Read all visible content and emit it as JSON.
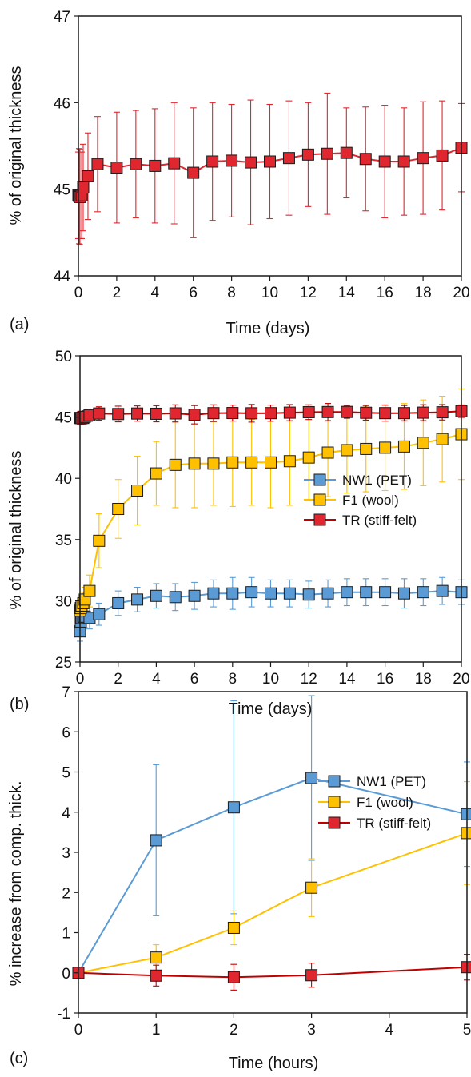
{
  "chart_data": [
    {
      "panel_label": "(a)",
      "type": "line",
      "xlabel": "Time (days)",
      "ylabel": "% of original thickness",
      "xlim": [
        0,
        20
      ],
      "ylim": [
        44,
        47
      ],
      "x_ticks": [
        0,
        2,
        4,
        6,
        8,
        10,
        12,
        14,
        16,
        18,
        20
      ],
      "y_ticks": [
        44,
        45,
        46,
        47
      ],
      "legend": "none",
      "grid": false,
      "series": [
        {
          "color": "#e0262e",
          "x": [
            0,
            0.04,
            0.08,
            0.17,
            0.25,
            0.5,
            1,
            2,
            3,
            4,
            5,
            6,
            7,
            8,
            9,
            10,
            11,
            12,
            13,
            14,
            15,
            16,
            17,
            18,
            19,
            20
          ],
          "y": [
            44.93,
            44.92,
            44.91,
            44.93,
            45.02,
            45.15,
            45.29,
            45.25,
            45.29,
            45.27,
            45.3,
            45.19,
            45.32,
            45.33,
            45.31,
            45.32,
            45.36,
            45.4,
            45.41,
            45.42,
            45.35,
            45.32,
            45.32,
            45.36,
            45.39,
            45.48
          ],
          "err": [
            0.5,
            0.55,
            0.55,
            0.5,
            0.5,
            0.5,
            0.55,
            0.64,
            0.62,
            0.66,
            0.7,
            0.75,
            0.68,
            0.65,
            0.72,
            0.66,
            0.66,
            0.6,
            0.7,
            0.52,
            0.6,
            0.65,
            0.62,
            0.65,
            0.63,
            0.51
          ]
        }
      ]
    },
    {
      "panel_label": "(b)",
      "type": "line",
      "xlabel": "Time (days)",
      "ylabel": "% of original thickness",
      "xlim": [
        0,
        20
      ],
      "ylim": [
        25,
        50
      ],
      "x_ticks": [
        0,
        2,
        4,
        6,
        8,
        10,
        12,
        14,
        16,
        18,
        20
      ],
      "y_ticks": [
        25,
        30,
        35,
        40,
        45,
        50
      ],
      "legend": "right",
      "grid": false,
      "series": [
        {
          "name": "NW1 (PET)",
          "color": "#5b9bd5",
          "x": [
            0,
            0.04,
            0.08,
            0.17,
            0.25,
            0.5,
            1,
            2,
            3,
            4,
            5,
            6,
            7,
            8,
            9,
            10,
            11,
            12,
            13,
            14,
            15,
            16,
            17,
            18,
            19,
            20
          ],
          "y": [
            27.5,
            28.3,
            28.6,
            28.7,
            28.7,
            28.6,
            28.9,
            29.8,
            30.1,
            30.4,
            30.3,
            30.4,
            30.6,
            30.6,
            30.7,
            30.6,
            30.6,
            30.5,
            30.6,
            30.7,
            30.7,
            30.7,
            30.6,
            30.7,
            30.8,
            30.7
          ],
          "err": [
            0.8,
            0.9,
            0.9,
            0.9,
            0.9,
            0.9,
            0.9,
            1.0,
            1.0,
            1.0,
            1.1,
            1.1,
            1.1,
            1.3,
            1.2,
            1.1,
            1.1,
            1.1,
            1.1,
            1.1,
            1.1,
            1.1,
            1.2,
            1.1,
            1.1,
            1.0
          ]
        },
        {
          "name": "F1 (wool)",
          "color": "#ffc000",
          "x": [
            0,
            0.04,
            0.08,
            0.17,
            0.25,
            0.5,
            1,
            2,
            3,
            4,
            5,
            6,
            7,
            8,
            9,
            10,
            11,
            12,
            13,
            14,
            15,
            16,
            17,
            18,
            19,
            20
          ],
          "y": [
            29.2,
            29.4,
            29.6,
            29.8,
            30.1,
            30.8,
            34.9,
            37.5,
            39.0,
            40.4,
            41.1,
            41.2,
            41.2,
            41.3,
            41.3,
            41.3,
            41.4,
            41.7,
            42.1,
            42.3,
            42.4,
            42.5,
            42.6,
            42.9,
            43.2,
            43.6
          ],
          "err": [
            0.6,
            0.7,
            0.8,
            0.9,
            1.0,
            1.3,
            2.2,
            2.4,
            2.8,
            2.6,
            3.5,
            3.6,
            3.4,
            3.6,
            3.5,
            3.7,
            3.6,
            3.5,
            3.6,
            3.5,
            3.5,
            3.5,
            3.5,
            3.5,
            3.5,
            3.7
          ]
        },
        {
          "name": "TR (stiff-felt)",
          "color": "#c00000",
          "x": [
            0,
            0.04,
            0.08,
            0.17,
            0.25,
            0.5,
            1,
            2,
            3,
            4,
            5,
            6,
            7,
            8,
            9,
            10,
            11,
            12,
            13,
            14,
            15,
            16,
            17,
            18,
            19,
            20
          ],
          "y": [
            44.93,
            44.92,
            44.91,
            44.93,
            45.02,
            45.15,
            45.29,
            45.25,
            45.29,
            45.27,
            45.3,
            45.19,
            45.32,
            45.33,
            45.31,
            45.32,
            45.36,
            45.4,
            45.41,
            45.42,
            45.35,
            45.32,
            45.32,
            45.36,
            45.39,
            45.48
          ],
          "err": [
            0.5,
            0.55,
            0.55,
            0.5,
            0.5,
            0.5,
            0.55,
            0.64,
            0.62,
            0.66,
            0.7,
            0.75,
            0.68,
            0.65,
            0.72,
            0.66,
            0.66,
            0.6,
            0.7,
            0.52,
            0.6,
            0.65,
            0.62,
            0.65,
            0.63,
            0.51
          ]
        }
      ]
    },
    {
      "panel_label": "(c)",
      "type": "line",
      "xlabel": "Time (hours)",
      "ylabel": "% increase from comp. thick.",
      "xlim": [
        0,
        5
      ],
      "ylim": [
        -1,
        7
      ],
      "x_ticks": [
        0,
        1,
        2,
        3,
        4,
        5
      ],
      "y_ticks": [
        -1,
        0,
        1,
        2,
        3,
        4,
        5,
        6,
        7
      ],
      "legend": "top-right",
      "grid": false,
      "series": [
        {
          "name": "NW1 (PET)",
          "color": "#5b9bd5",
          "x": [
            0,
            1,
            2,
            3,
            5
          ],
          "y": [
            0,
            3.3,
            4.12,
            4.85,
            3.95
          ],
          "err": [
            0,
            1.88,
            2.65,
            2.05,
            1.3
          ]
        },
        {
          "name": "F1 (wool)",
          "color": "#ffc000",
          "x": [
            0,
            1,
            2,
            3,
            5
          ],
          "y": [
            0,
            0.38,
            1.12,
            2.12,
            3.48
          ],
          "err": [
            0,
            0.32,
            0.42,
            0.72,
            1.28
          ]
        },
        {
          "name": "TR (stiff-felt)",
          "color": "#c00000",
          "x": [
            0,
            1,
            2,
            3,
            5
          ],
          "y": [
            0,
            -0.07,
            -0.11,
            -0.06,
            0.14
          ],
          "err": [
            0,
            0.26,
            0.32,
            0.3,
            0.32
          ]
        }
      ]
    }
  ]
}
